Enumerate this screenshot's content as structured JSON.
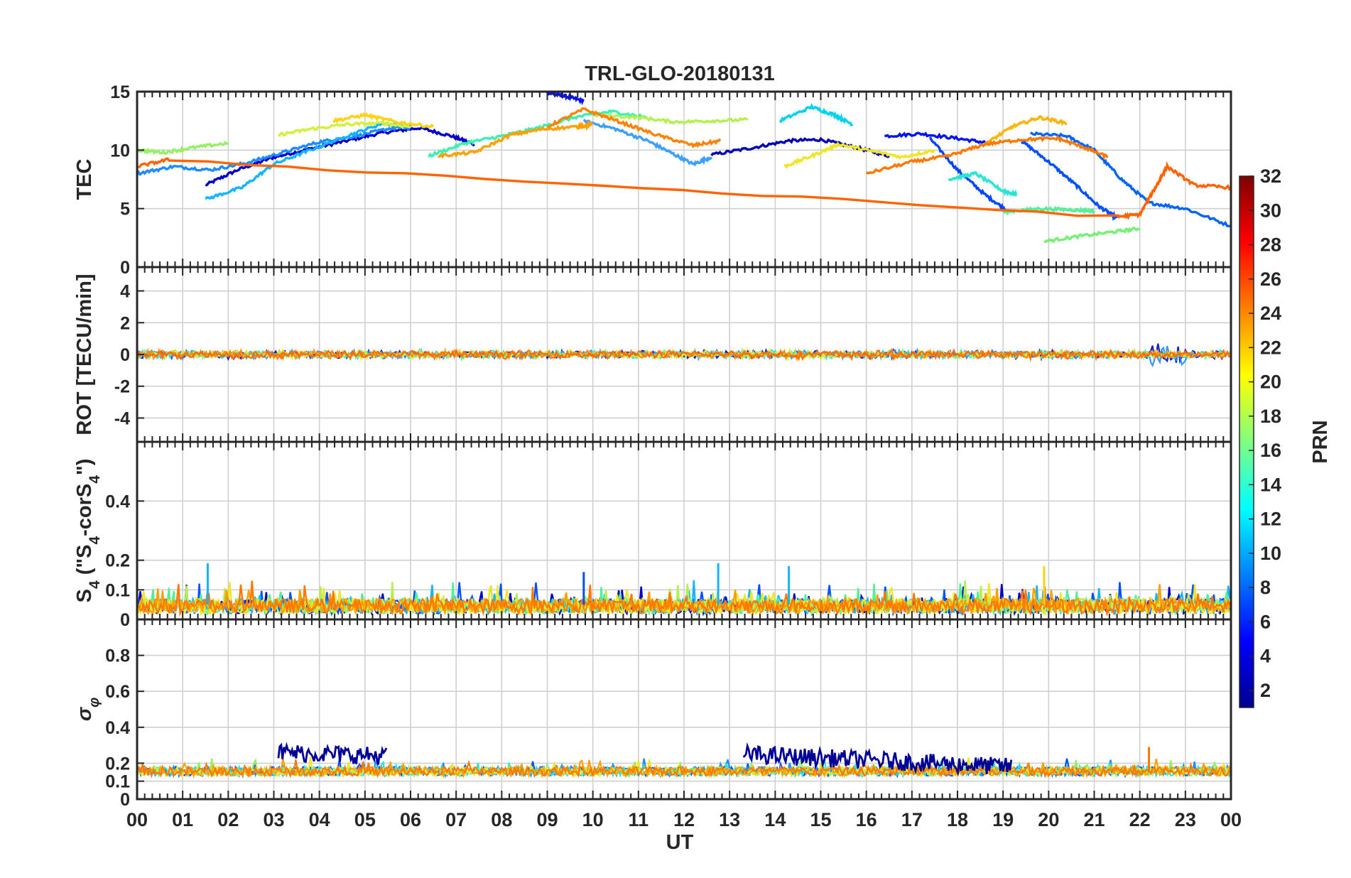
{
  "title": "TRL-GLO-20180131",
  "x_label": "UT",
  "x_ticks": [
    "00",
    "01",
    "02",
    "03",
    "04",
    "05",
    "06",
    "07",
    "08",
    "09",
    "10",
    "11",
    "12",
    "13",
    "14",
    "15",
    "16",
    "17",
    "18",
    "19",
    "20",
    "21",
    "22",
    "23",
    "00"
  ],
  "colorbar": {
    "label": "PRN",
    "ticks": [
      "2",
      "4",
      "6",
      "8",
      "10",
      "12",
      "14",
      "16",
      "18",
      "20",
      "22",
      "24",
      "26",
      "28",
      "30",
      "32"
    ],
    "range": [
      1,
      32
    ],
    "colors": [
      "#00008f",
      "#0000ff",
      "#0080ff",
      "#00ffff",
      "#80ff80",
      "#ffff00",
      "#ff8000",
      "#ff0000",
      "#800000"
    ]
  },
  "chart_data": [
    {
      "type": "line",
      "panel": "tec",
      "ylabel": "TEC",
      "ylim": [
        0,
        15
      ],
      "yticks": [
        "0",
        "5",
        "10",
        "15"
      ],
      "ytick_values": [
        0,
        5,
        10,
        15
      ],
      "xlim": [
        0,
        24
      ],
      "series": [
        {
          "name": "PRN 2",
          "color": "#0000c8",
          "x": [
            1.5,
            2.2,
            3.0,
            3.8,
            4.6,
            5.4,
            6.2,
            6.9,
            7.4
          ],
          "y": [
            7.0,
            8.3,
            9.4,
            10.1,
            10.8,
            11.5,
            11.9,
            11.2,
            10.5
          ]
        },
        {
          "name": "PRN 4",
          "color": "#0a14e6",
          "x": [
            9.0,
            9.4,
            9.8
          ],
          "y": [
            14.9,
            14.6,
            14.2
          ]
        },
        {
          "name": "PRN 3",
          "color": "#0000b4",
          "x": [
            12.6,
            13.5,
            14.3,
            15.0,
            15.8,
            16.5
          ],
          "y": [
            9.6,
            10.2,
            10.8,
            10.9,
            10.2,
            9.5
          ]
        },
        {
          "name": "PRN 5",
          "color": "#0014f0",
          "x": [
            16.4,
            17.2,
            18.0,
            18.7
          ],
          "y": [
            11.2,
            11.4,
            11.0,
            10.6
          ]
        },
        {
          "name": "PRN 6",
          "color": "#0046ff",
          "x": [
            17.4,
            18.0,
            18.6,
            19.1
          ],
          "y": [
            11.0,
            8.3,
            6.2,
            4.8
          ]
        },
        {
          "name": "PRN 7",
          "color": "#0050ff",
          "x": [
            19.4,
            20.0,
            20.6,
            21.1,
            21.5
          ],
          "y": [
            10.8,
            9.0,
            7.0,
            5.2,
            4.2
          ]
        },
        {
          "name": "PRN 8",
          "color": "#0064ff",
          "x": [
            19.6,
            20.4,
            21.0,
            21.6,
            22.2,
            23.0,
            24.0
          ],
          "y": [
            11.4,
            11.2,
            10.0,
            7.5,
            5.5,
            5.0,
            3.5
          ]
        },
        {
          "name": "PRN 9",
          "color": "#1e8cff",
          "x": [
            0.0,
            0.8,
            1.6,
            2.4,
            3.2,
            4.0,
            4.8,
            5.6,
            6.0
          ],
          "y": [
            8.0,
            8.6,
            8.3,
            8.9,
            9.8,
            10.7,
            11.2,
            11.9,
            12.0
          ]
        },
        {
          "name": "PRN 10",
          "color": "#3ca0ff",
          "x": [
            9.8,
            10.5,
            11.2,
            11.7,
            12.2,
            12.6
          ],
          "y": [
            12.5,
            11.8,
            10.8,
            9.8,
            8.8,
            9.4
          ]
        },
        {
          "name": "PRN 11",
          "color": "#14b4ff",
          "x": [
            1.5,
            2.3,
            3.0,
            3.8,
            4.6,
            5.4,
            6.0
          ],
          "y": [
            5.8,
            6.8,
            8.8,
            10.0,
            11.2,
            12.3,
            12.0
          ]
        },
        {
          "name": "PRN 12",
          "color": "#00d2f0",
          "x": [
            14.1,
            14.8,
            15.3,
            15.7
          ],
          "y": [
            12.5,
            13.7,
            13.0,
            12.2
          ]
        },
        {
          "name": "PRN 13",
          "color": "#28e6d2",
          "x": [
            17.8,
            18.4,
            19.0,
            19.3
          ],
          "y": [
            7.5,
            8.0,
            6.5,
            6.2
          ]
        },
        {
          "name": "PRN 14",
          "color": "#3cf0b4",
          "x": [
            6.4,
            7.2,
            8.0,
            8.8,
            9.6,
            10.4,
            11.2
          ],
          "y": [
            9.5,
            10.6,
            11.2,
            11.9,
            12.8,
            13.3,
            12.8
          ]
        },
        {
          "name": "PRN 15",
          "color": "#50f096",
          "x": [
            19.0,
            19.8,
            20.5,
            21.0
          ],
          "y": [
            4.7,
            5.0,
            4.9,
            4.8
          ]
        },
        {
          "name": "PRN 16",
          "color": "#78f078",
          "x": [
            19.9,
            20.6,
            21.4,
            22.0
          ],
          "y": [
            2.2,
            2.6,
            3.0,
            3.3
          ]
        },
        {
          "name": "PRN 17",
          "color": "#96f064",
          "x": [
            0.0,
            0.6,
            1.2,
            2.0
          ],
          "y": [
            10.0,
            9.8,
            10.2,
            10.6
          ]
        },
        {
          "name": "PRN 18",
          "color": "#b4f050",
          "x": [
            10.0,
            11.0,
            11.8,
            12.6,
            13.4
          ],
          "y": [
            13.0,
            12.8,
            12.4,
            12.5,
            12.6
          ]
        },
        {
          "name": "PRN 19",
          "color": "#d2f03c",
          "x": [
            3.1,
            3.8,
            4.6,
            5.4,
            6.0
          ],
          "y": [
            11.3,
            11.8,
            12.2,
            12.3,
            12.0
          ]
        },
        {
          "name": "PRN 20",
          "color": "#f0e628",
          "x": [
            14.2,
            14.8,
            15.4,
            16.0,
            16.8,
            17.5
          ],
          "y": [
            8.6,
            9.5,
            10.5,
            10.0,
            9.4,
            10.0
          ]
        },
        {
          "name": "PRN 21",
          "color": "#ffd214",
          "x": [
            4.3,
            5.0,
            5.7,
            6.5
          ],
          "y": [
            12.5,
            13.0,
            12.4,
            12.0
          ]
        },
        {
          "name": "PRN 22",
          "color": "#ffb400",
          "x": [
            18.6,
            19.2,
            19.8,
            20.4
          ],
          "y": [
            10.5,
            12.0,
            12.8,
            12.3
          ]
        },
        {
          "name": "PRN 23",
          "color": "#ffa000",
          "x": [
            6.6,
            7.4,
            8.2,
            8.9,
            9.7,
            10.0
          ],
          "y": [
            9.5,
            9.8,
            11.3,
            11.8,
            12.0,
            12.2
          ]
        },
        {
          "name": "PRN 24",
          "color": "#ff8200",
          "x": [
            9.0,
            9.8,
            10.6,
            11.4,
            12.2,
            12.8
          ],
          "y": [
            12.0,
            13.5,
            12.4,
            11.3,
            10.4,
            10.8
          ]
        },
        {
          "name": "PRN 25",
          "color": "#ff7800",
          "x": [
            16.0,
            17.0,
            17.8,
            18.6,
            19.4,
            20.2,
            20.8,
            21.3
          ],
          "y": [
            8.0,
            9.0,
            9.5,
            10.5,
            10.9,
            11.0,
            10.2,
            9.4
          ]
        },
        {
          "name": "PRN 26",
          "color": "#ff6400",
          "x": [
            0.0,
            0.7,
            21.5,
            22.0,
            22.4,
            22.6,
            23.2,
            24.0
          ],
          "y": [
            8.6,
            9.2,
            4.3,
            4.5,
            7.2,
            8.6,
            7.0,
            6.8
          ]
        }
      ]
    },
    {
      "type": "line",
      "panel": "rot",
      "ylabel": "ROT [TECU/min]",
      "ylim": [
        -5.5,
        5.5
      ],
      "yticks": [
        "-4",
        "-2",
        "0",
        "2",
        "4"
      ],
      "ytick_values": [
        -4,
        -2,
        0,
        2,
        4
      ],
      "xlim": [
        0,
        24
      ],
      "series": [
        {
          "name": "all PRNs",
          "color": "mixed",
          "x": [
            0,
            24
          ],
          "y": [
            0,
            0
          ],
          "noise_amplitude": 0.3,
          "note": "noisy trace around zero, max excursions about +0.8 / -0.9"
        }
      ]
    },
    {
      "type": "line",
      "panel": "s4",
      "ylabel": "S4 (\"S4-corS4\")",
      "ylim": [
        0,
        0.6
      ],
      "yticks": [
        "0",
        "0.1",
        "0.2",
        "0.4"
      ],
      "ytick_values": [
        0,
        0.1,
        0.2,
        0.4
      ],
      "xlim": [
        0,
        24
      ],
      "series": [
        {
          "name": "all PRNs",
          "color": "mixed",
          "x": [
            0,
            24
          ],
          "y": [
            0.05,
            0.05
          ],
          "noise_amplitude": 0.08,
          "peaks": [
            0.19,
            0.19,
            0.18
          ],
          "note": "noisy traces mostly 0.02–0.12 with peaks near 0.19"
        }
      ]
    },
    {
      "type": "line",
      "panel": "sigma",
      "ylabel": "σφ",
      "ylim": [
        0,
        1
      ],
      "yticks": [
        "0",
        "0.1",
        "0.2",
        "0.4",
        "0.6",
        "0.8"
      ],
      "ytick_values": [
        0,
        0.1,
        0.2,
        0.4,
        0.6,
        0.8
      ],
      "xlim": [
        0,
        24
      ],
      "series": [
        {
          "name": "PRN 1 enhanced",
          "color": "#000096",
          "segments": [
            [
              3.1,
              5.5
            ],
            [
              13.3,
              19.2
            ]
          ],
          "y_level": [
            0.25,
            0.22
          ],
          "note": "dark blue elevated phase-scintillation bursts"
        },
        {
          "name": "other PRNs",
          "color": "mixed",
          "x": [
            0,
            24
          ],
          "y": [
            0.15,
            0.15
          ],
          "noise_amplitude": 0.03
        }
      ]
    }
  ]
}
